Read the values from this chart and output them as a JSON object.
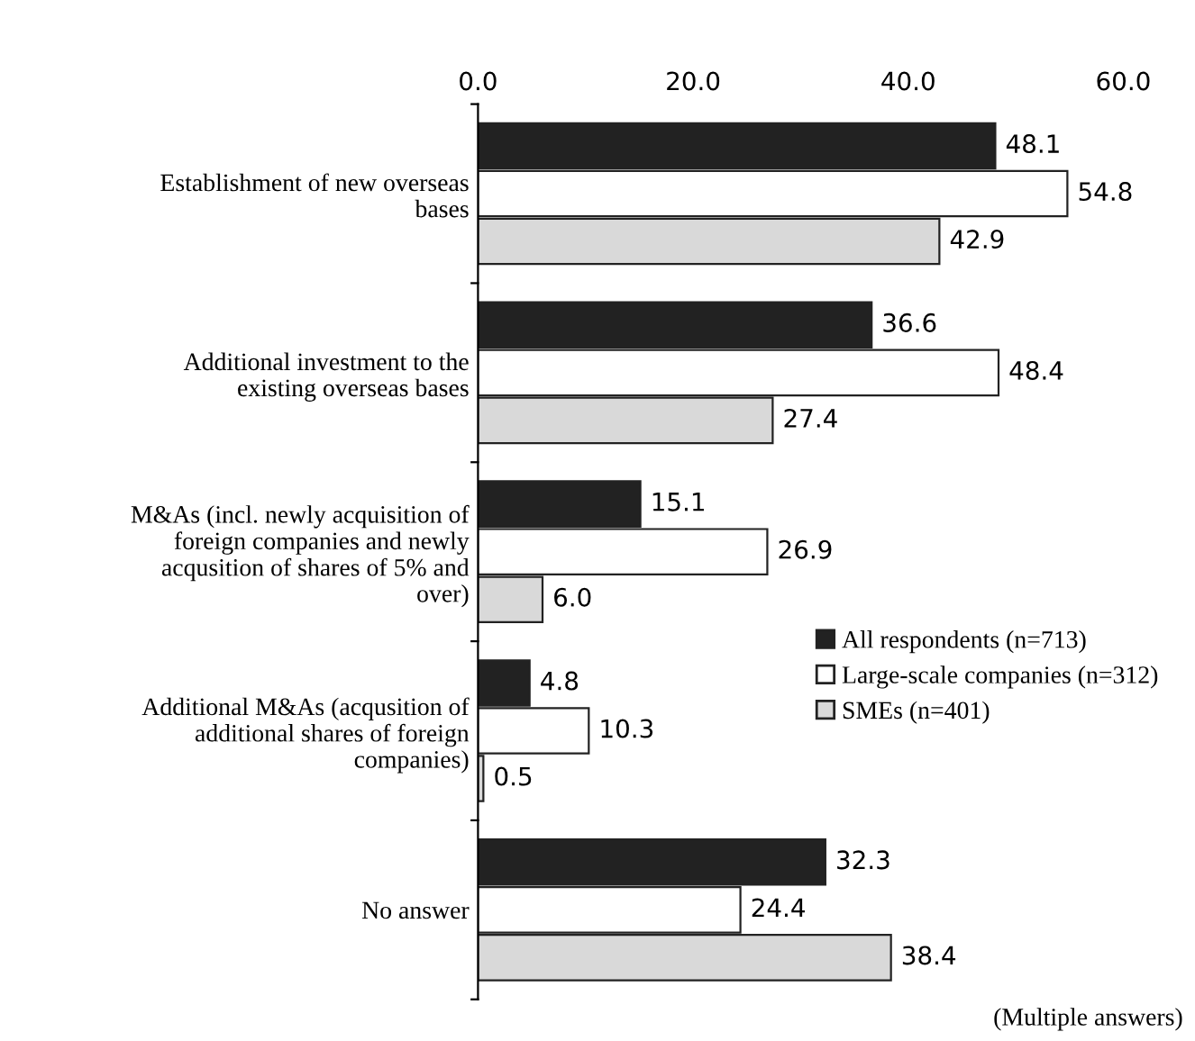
{
  "chart_data": {
    "type": "bar",
    "orientation": "horizontal",
    "categories": [
      "Establishment of new overseas\nbases",
      "Additional investment to the\nexisting overseas bases",
      "M&As (incl. newly acquisition of\nforeign companies and newly\nacqusition of shares of 5% and\nover)",
      "Additional M&As (acqusition of\nadditional shares of foreign\ncompanies)",
      "No answer"
    ],
    "series": [
      {
        "name": "All respondents (n=713)",
        "color": "#222222",
        "values": [
          48.1,
          36.6,
          15.1,
          4.8,
          32.3
        ]
      },
      {
        "name": "Large-scale companies (n=312)",
        "color": "#ffffff",
        "values": [
          54.8,
          48.4,
          26.9,
          10.3,
          24.4
        ]
      },
      {
        "name": "SMEs (n=401)",
        "color": "#d9d9d9",
        "values": [
          42.9,
          27.4,
          6.0,
          0.5,
          38.4
        ],
        "value_labels": [
          "42.9",
          "27.4",
          "6.0",
          "0.5",
          "38.4"
        ]
      }
    ],
    "xlim": [
      0,
      60
    ],
    "xticks": [
      {
        "value": 0,
        "label": "0.0"
      },
      {
        "value": 20,
        "label": "20.0"
      },
      {
        "value": 40,
        "label": "40.0"
      },
      {
        "value": 60,
        "label": "60.0"
      }
    ],
    "data_labels": true,
    "legend": "right",
    "grid": false,
    "annotations": [
      "(Multiple answers)"
    ]
  }
}
